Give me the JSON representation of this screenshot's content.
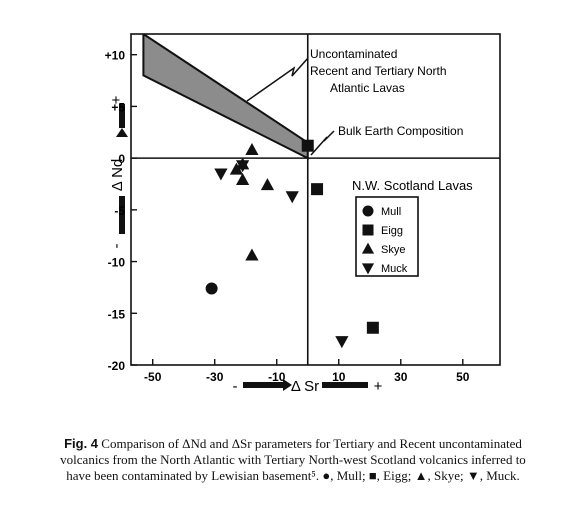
{
  "chart_data": {
    "type": "scatter",
    "xlabel": "Δ Sr",
    "ylabel": "Δ Nd",
    "x_ticks": [
      -50,
      -30,
      -10,
      10,
      30,
      50
    ],
    "y_ticks": [
      10,
      5,
      0,
      -5,
      -10,
      -15,
      -20
    ],
    "x_tick_labels": [
      "-50",
      "-30",
      "-10",
      "10",
      "30",
      "50"
    ],
    "y_tick_labels": [
      "+10",
      "+5",
      "0",
      "-5",
      "-10",
      "-15",
      "-20"
    ],
    "xlim": [
      -57,
      62
    ],
    "ylim": [
      -20,
      12
    ],
    "y_axis_signs": {
      "negative": "-",
      "positive": "+"
    },
    "x_axis_signs": {
      "negative": "-",
      "positive": "+"
    },
    "reference_lines": {
      "x": 0,
      "y": 0
    },
    "field": {
      "name": "Uncontaminated Recent and Tertiary North Atlantic Lavas",
      "label_lines": [
        "Uncontaminated",
        "Recent and Tertiary North",
        "Atlantic Lavas"
      ],
      "upper_edge": [
        [
          -53,
          12
        ],
        [
          0,
          1.5
        ]
      ],
      "lower_edge": [
        [
          -53,
          8
        ],
        [
          0,
          0
        ]
      ]
    },
    "bulk_earth_label": "Bulk Earth Composition",
    "legend_title": "N.W. Scotland Lavas",
    "series": [
      {
        "name": "Mull",
        "marker": "circle",
        "points": [
          [
            -31,
            -12.6
          ]
        ]
      },
      {
        "name": "Eigg",
        "marker": "square",
        "points": [
          [
            0,
            1.2
          ],
          [
            3,
            -3
          ],
          [
            21,
            -16.4
          ]
        ]
      },
      {
        "name": "Skye",
        "marker": "triangle-up",
        "points": [
          [
            -18,
            0.8
          ],
          [
            -21,
            -0.6
          ],
          [
            -23,
            -1.1
          ],
          [
            -21,
            -2.1
          ],
          [
            -13,
            -2.6
          ],
          [
            -18,
            -9.4
          ]
        ]
      },
      {
        "name": "Muck",
        "marker": "triangle-down",
        "points": [
          [
            -28,
            -1.5
          ],
          [
            -21,
            -0.7
          ],
          [
            -5,
            -3.7
          ],
          [
            11,
            -17.7
          ]
        ]
      }
    ]
  },
  "caption": {
    "label": "Fig. 4",
    "text": "Comparison of ΔNd and ΔSr parameters for Tertiary and Recent uncontaminated volcanics from the North Atlantic with Tertiary North-west Scotland volcanics inferred to have been contaminated by Lewisian basement⁵. ●, Mull; ■, Eigg; ▲, Skye; ▼, Muck."
  }
}
